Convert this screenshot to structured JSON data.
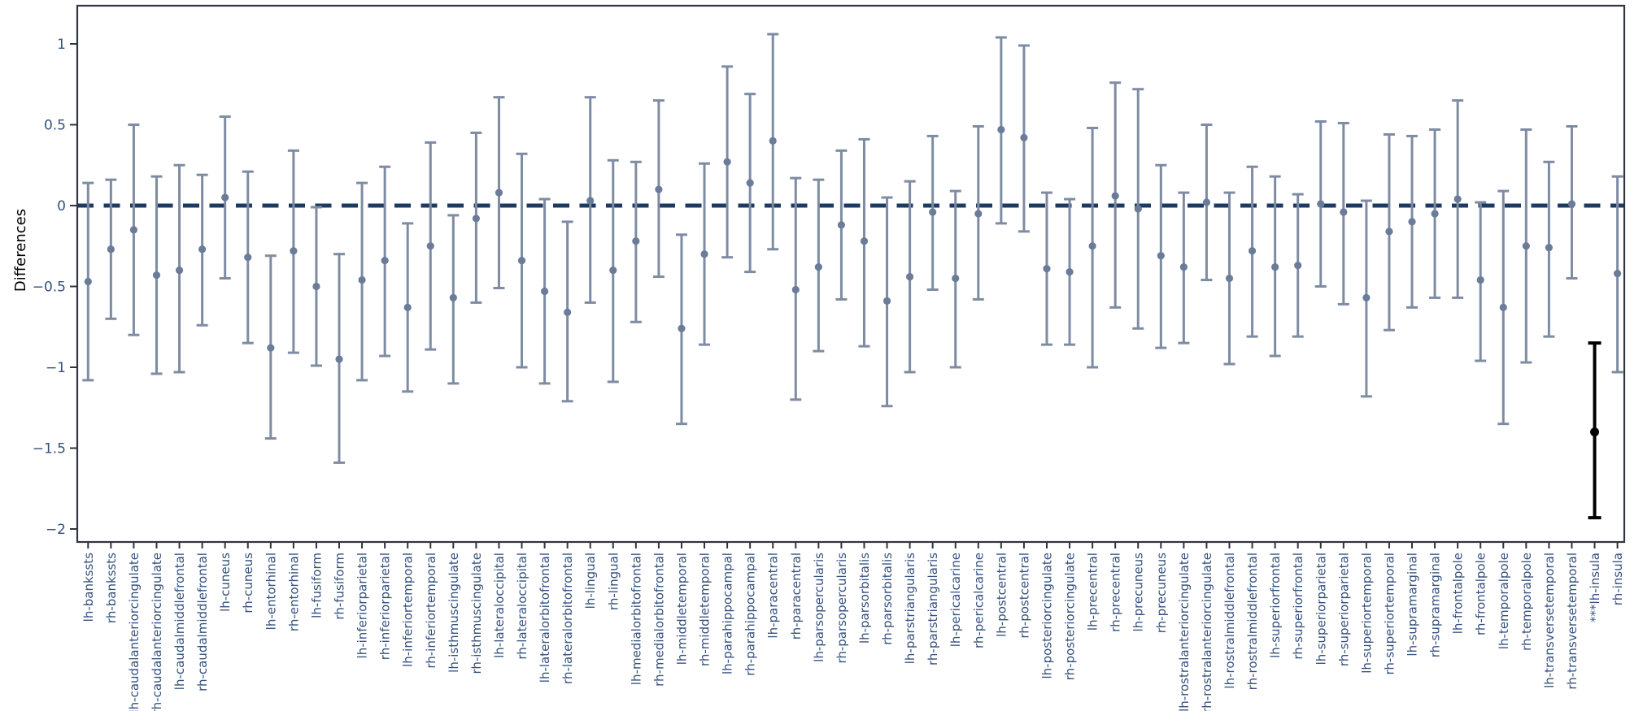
{
  "style": {
    "background": "#ffffff",
    "axis_color": "#30353d",
    "tick_label_color": "#35517d",
    "zero_line_color": "#1f3a60",
    "errorbar_color": "#7e8ca3",
    "marker_color": "#6b7c99",
    "highlight_color": "#000000"
  },
  "chart_data": {
    "type": "scatter",
    "subtype": "errorbar",
    "title": "",
    "xlabel": "",
    "ylabel": "Differences",
    "ylim": [
      -2.08,
      1.24
    ],
    "grid": false,
    "zero_reference_line": {
      "value": 0,
      "style": "dashed"
    },
    "yticks": [
      {
        "v": 1,
        "label": "1"
      },
      {
        "v": 0.5,
        "label": "0.5"
      },
      {
        "v": 0,
        "label": "0"
      },
      {
        "v": -0.5,
        "label": "−0.5"
      },
      {
        "v": -1,
        "label": "−1"
      },
      {
        "v": -1.5,
        "label": "−1.5"
      },
      {
        "v": -2,
        "label": "−2"
      }
    ],
    "points": [
      {
        "label": "lh-bankssts",
        "y": -0.47,
        "hi": 0.14,
        "lo": -1.08,
        "significant": false
      },
      {
        "label": "rh-bankssts",
        "y": -0.27,
        "hi": 0.16,
        "lo": -0.7,
        "significant": false
      },
      {
        "label": "lh-caudalanteriorcingulate",
        "y": -0.15,
        "hi": 0.5,
        "lo": -0.8,
        "significant": false
      },
      {
        "label": "rh-caudalanteriorcingulate",
        "y": -0.43,
        "hi": 0.18,
        "lo": -1.04,
        "significant": false
      },
      {
        "label": "lh-caudalmiddlefrontal",
        "y": -0.4,
        "hi": 0.25,
        "lo": -1.03,
        "significant": false
      },
      {
        "label": "rh-caudalmiddlefrontal",
        "y": -0.27,
        "hi": 0.19,
        "lo": -0.74,
        "significant": false
      },
      {
        "label": "lh-cuneus",
        "y": 0.05,
        "hi": 0.55,
        "lo": -0.45,
        "significant": false
      },
      {
        "label": "rh-cuneus",
        "y": -0.32,
        "hi": 0.21,
        "lo": -0.85,
        "significant": false
      },
      {
        "label": "lh-entorhinal",
        "y": -0.88,
        "hi": -0.31,
        "lo": -1.44,
        "significant": false
      },
      {
        "label": "rh-entorhinal",
        "y": -0.28,
        "hi": 0.34,
        "lo": -0.91,
        "significant": false
      },
      {
        "label": "lh-fusiform",
        "y": -0.5,
        "hi": -0.01,
        "lo": -0.99,
        "significant": false
      },
      {
        "label": "rh-fusiform",
        "y": -0.95,
        "hi": -0.3,
        "lo": -1.59,
        "significant": false
      },
      {
        "label": "lh-inferiorparietal",
        "y": -0.46,
        "hi": 0.14,
        "lo": -1.08,
        "significant": false
      },
      {
        "label": "rh-inferiorparietal",
        "y": -0.34,
        "hi": 0.24,
        "lo": -0.93,
        "significant": false
      },
      {
        "label": "lh-inferiortemporal",
        "y": -0.63,
        "hi": -0.11,
        "lo": -1.15,
        "significant": false
      },
      {
        "label": "rh-inferiortemporal",
        "y": -0.25,
        "hi": 0.39,
        "lo": -0.89,
        "significant": false
      },
      {
        "label": "lh-isthmuscingulate",
        "y": -0.57,
        "hi": -0.06,
        "lo": -1.1,
        "significant": false
      },
      {
        "label": "rh-isthmuscingulate",
        "y": -0.08,
        "hi": 0.45,
        "lo": -0.6,
        "significant": false
      },
      {
        "label": "lh-lateraloccipital",
        "y": 0.08,
        "hi": 0.67,
        "lo": -0.51,
        "significant": false
      },
      {
        "label": "rh-lateraloccipital",
        "y": -0.34,
        "hi": 0.32,
        "lo": -1.0,
        "significant": false
      },
      {
        "label": "lh-lateralorbitofrontal",
        "y": -0.53,
        "hi": 0.04,
        "lo": -1.1,
        "significant": false
      },
      {
        "label": "rh-lateralorbitofrontal",
        "y": -0.66,
        "hi": -0.1,
        "lo": -1.21,
        "significant": false
      },
      {
        "label": "lh-lingual",
        "y": 0.03,
        "hi": 0.67,
        "lo": -0.6,
        "significant": false
      },
      {
        "label": "rh-lingual",
        "y": -0.4,
        "hi": 0.28,
        "lo": -1.09,
        "significant": false
      },
      {
        "label": "lh-medialorbitofrontal",
        "y": -0.22,
        "hi": 0.27,
        "lo": -0.72,
        "significant": false
      },
      {
        "label": "rh-medialorbitofrontal",
        "y": 0.1,
        "hi": 0.65,
        "lo": -0.44,
        "significant": false
      },
      {
        "label": "lh-middletemporal",
        "y": -0.76,
        "hi": -0.18,
        "lo": -1.35,
        "significant": false
      },
      {
        "label": "rh-middletemporal",
        "y": -0.3,
        "hi": 0.26,
        "lo": -0.86,
        "significant": false
      },
      {
        "label": "lh-parahippocampal",
        "y": 0.27,
        "hi": 0.86,
        "lo": -0.32,
        "significant": false
      },
      {
        "label": "rh-parahippocampal",
        "y": 0.14,
        "hi": 0.69,
        "lo": -0.41,
        "significant": false
      },
      {
        "label": "lh-paracentral",
        "y": 0.4,
        "hi": 1.06,
        "lo": -0.27,
        "significant": false
      },
      {
        "label": "rh-paracentral",
        "y": -0.52,
        "hi": 0.17,
        "lo": -1.2,
        "significant": false
      },
      {
        "label": "lh-parsopercularis",
        "y": -0.38,
        "hi": 0.16,
        "lo": -0.9,
        "significant": false
      },
      {
        "label": "rh-parsopercularis",
        "y": -0.12,
        "hi": 0.34,
        "lo": -0.58,
        "significant": false
      },
      {
        "label": "lh-parsorbitalis",
        "y": -0.22,
        "hi": 0.41,
        "lo": -0.87,
        "significant": false
      },
      {
        "label": "rh-parsorbitalis",
        "y": -0.59,
        "hi": 0.05,
        "lo": -1.24,
        "significant": false
      },
      {
        "label": "lh-parstriangularis",
        "y": -0.44,
        "hi": 0.15,
        "lo": -1.03,
        "significant": false
      },
      {
        "label": "rh-parstriangularis",
        "y": -0.04,
        "hi": 0.43,
        "lo": -0.52,
        "significant": false
      },
      {
        "label": "lh-pericalcarine",
        "y": -0.45,
        "hi": 0.09,
        "lo": -1.0,
        "significant": false
      },
      {
        "label": "rh-pericalcarine",
        "y": -0.05,
        "hi": 0.49,
        "lo": -0.58,
        "significant": false
      },
      {
        "label": "lh-postcentral",
        "y": 0.47,
        "hi": 1.04,
        "lo": -0.11,
        "significant": false
      },
      {
        "label": "rh-postcentral",
        "y": 0.42,
        "hi": 0.99,
        "lo": -0.16,
        "significant": false
      },
      {
        "label": "lh-posteriorcingulate",
        "y": -0.39,
        "hi": 0.08,
        "lo": -0.86,
        "significant": false
      },
      {
        "label": "rh-posteriorcingulate",
        "y": -0.41,
        "hi": 0.04,
        "lo": -0.86,
        "significant": false
      },
      {
        "label": "lh-precentral",
        "y": -0.25,
        "hi": 0.48,
        "lo": -1.0,
        "significant": false
      },
      {
        "label": "rh-precentral",
        "y": 0.06,
        "hi": 0.76,
        "lo": -0.63,
        "significant": false
      },
      {
        "label": "lh-precuneus",
        "y": -0.02,
        "hi": 0.72,
        "lo": -0.76,
        "significant": false
      },
      {
        "label": "rh-precuneus",
        "y": -0.31,
        "hi": 0.25,
        "lo": -0.88,
        "significant": false
      },
      {
        "label": "lh-rostralanteriorcingulate",
        "y": -0.38,
        "hi": 0.08,
        "lo": -0.85,
        "significant": false
      },
      {
        "label": "rh-rostralanteriorcingulate",
        "y": 0.02,
        "hi": 0.5,
        "lo": -0.46,
        "significant": false
      },
      {
        "label": "lh-rostralmiddlefrontal",
        "y": -0.45,
        "hi": 0.08,
        "lo": -0.98,
        "significant": false
      },
      {
        "label": "rh-rostralmiddlefrontal",
        "y": -0.28,
        "hi": 0.24,
        "lo": -0.81,
        "significant": false
      },
      {
        "label": "lh-superiorfrontal",
        "y": -0.38,
        "hi": 0.18,
        "lo": -0.93,
        "significant": false
      },
      {
        "label": "rh-superiorfrontal",
        "y": -0.37,
        "hi": 0.07,
        "lo": -0.81,
        "significant": false
      },
      {
        "label": "lh-superiorparietal",
        "y": 0.01,
        "hi": 0.52,
        "lo": -0.5,
        "significant": false
      },
      {
        "label": "rh-superiorparietal",
        "y": -0.04,
        "hi": 0.51,
        "lo": -0.61,
        "significant": false
      },
      {
        "label": "lh-superiortemporal",
        "y": -0.57,
        "hi": 0.03,
        "lo": -1.18,
        "significant": false
      },
      {
        "label": "rh-superiortemporal",
        "y": -0.16,
        "hi": 0.44,
        "lo": -0.77,
        "significant": false
      },
      {
        "label": "lh-supramarginal",
        "y": -0.1,
        "hi": 0.43,
        "lo": -0.63,
        "significant": false
      },
      {
        "label": "rh-supramarginal",
        "y": -0.05,
        "hi": 0.47,
        "lo": -0.57,
        "significant": false
      },
      {
        "label": "lh-frontalpole",
        "y": 0.04,
        "hi": 0.65,
        "lo": -0.57,
        "significant": false
      },
      {
        "label": "rh-frontalpole",
        "y": -0.46,
        "hi": 0.02,
        "lo": -0.96,
        "significant": false
      },
      {
        "label": "lh-temporalpole",
        "y": -0.63,
        "hi": 0.09,
        "lo": -1.35,
        "significant": false
      },
      {
        "label": "rh-temporalpole",
        "y": -0.25,
        "hi": 0.47,
        "lo": -0.97,
        "significant": false
      },
      {
        "label": "lh-transversetemporal",
        "y": -0.26,
        "hi": 0.27,
        "lo": -0.81,
        "significant": false
      },
      {
        "label": "rh-transversetemporal",
        "y": 0.01,
        "hi": 0.49,
        "lo": -0.45,
        "significant": false
      },
      {
        "label": "***lh-insula",
        "y": -1.4,
        "hi": -0.85,
        "lo": -1.93,
        "significant": true
      },
      {
        "label": "rh-insula",
        "y": -0.42,
        "hi": 0.18,
        "lo": -1.03,
        "significant": false
      }
    ]
  }
}
